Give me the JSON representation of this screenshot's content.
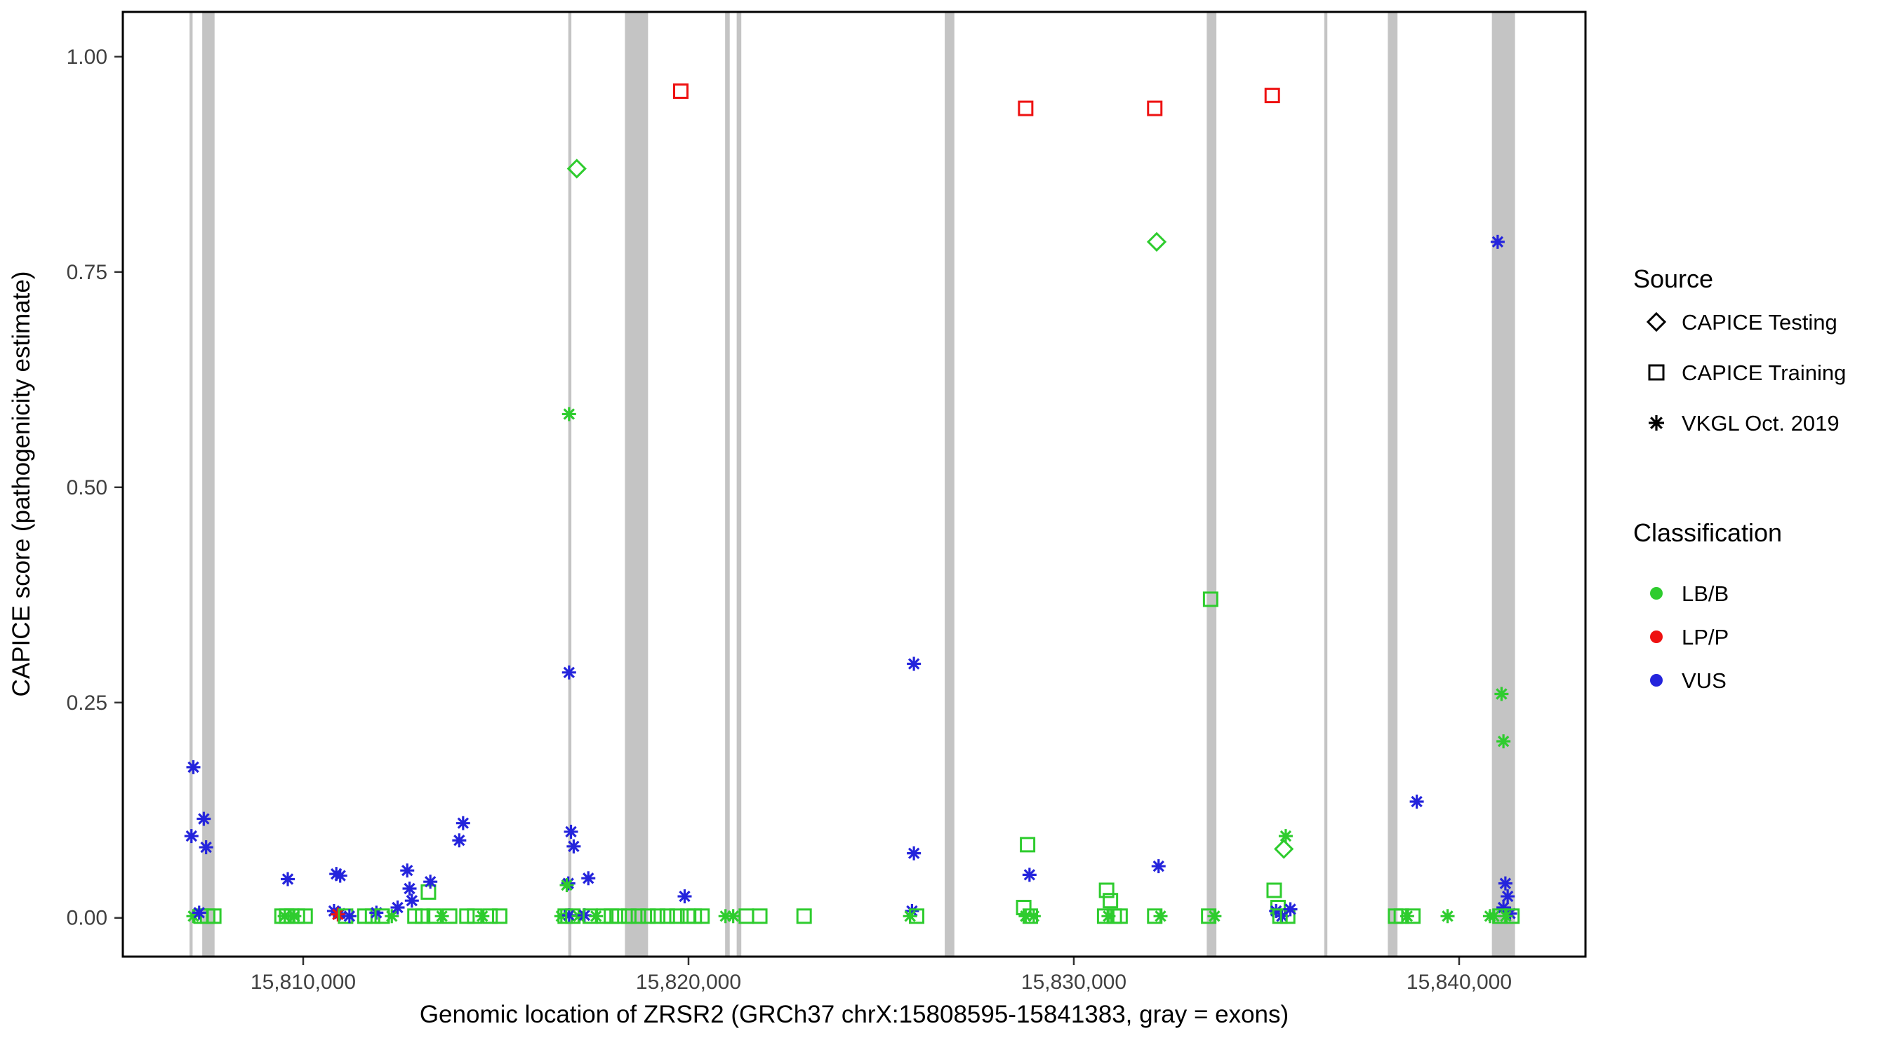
{
  "chart_data": {
    "type": "scatter",
    "title": "",
    "xlabel": "Genomic location of ZRSR2 (GRCh37 chrX:15808595-15841383, gray = exons)",
    "ylabel": "CAPICE score (pathogenicity estimate)",
    "x_domain": [
      15805319,
      15843279
    ],
    "y_domain": [
      -0.045,
      1.052
    ],
    "grid": "off",
    "legend_position": "right",
    "x_ticks": [
      {
        "value": 15810000,
        "label": "15,810,000"
      },
      {
        "value": 15820000,
        "label": "15,820,000"
      },
      {
        "value": 15830000,
        "label": "15,830,000"
      },
      {
        "value": 15840000,
        "label": "15,840,000"
      }
    ],
    "y_ticks": [
      {
        "value": 0.0,
        "label": "0.00"
      },
      {
        "value": 0.25,
        "label": "0.25"
      },
      {
        "value": 0.5,
        "label": "0.50"
      },
      {
        "value": 0.75,
        "label": "0.75"
      },
      {
        "value": 1.0,
        "label": "1.00"
      }
    ],
    "exon_color": "#C4C4C4",
    "exons": [
      [
        15807050,
        15807130
      ],
      [
        15807380,
        15807700
      ],
      [
        15816880,
        15816960
      ],
      [
        15818350,
        15818950
      ],
      [
        15820950,
        15821070
      ],
      [
        15821250,
        15821370
      ],
      [
        15826650,
        15826900
      ],
      [
        15833450,
        15833700
      ],
      [
        15836500,
        15836580
      ],
      [
        15838150,
        15838400
      ],
      [
        15840850,
        15841450
      ]
    ],
    "classification_colors": {
      "LB/B": "#2ECC2E",
      "LP/P": "#EE1111",
      "VUS": "#2424DC"
    },
    "source_shapes": {
      "testing": "diamond",
      "training": "square",
      "vkgl": "asterisk"
    },
    "point_columns": [
      "x",
      "y",
      "classification",
      "source"
    ],
    "points": [
      [
        15807150,
        0.175,
        "VUS",
        "vkgl"
      ],
      [
        15807100,
        0.095,
        "VUS",
        "vkgl"
      ],
      [
        15807420,
        0.115,
        "VUS",
        "vkgl"
      ],
      [
        15807480,
        0.082,
        "VUS",
        "vkgl"
      ],
      [
        15807150,
        0.002,
        "LB/B",
        "vkgl"
      ],
      [
        15807350,
        0.002,
        "LB/B",
        "training"
      ],
      [
        15807520,
        0.002,
        "LB/B",
        "training"
      ],
      [
        15807680,
        0.002,
        "LB/B",
        "training"
      ],
      [
        15807300,
        0.006,
        "VUS",
        "vkgl"
      ],
      [
        15809600,
        0.045,
        "VUS",
        "vkgl"
      ],
      [
        15809450,
        0.002,
        "LB/B",
        "training"
      ],
      [
        15809570,
        0.002,
        "LB/B",
        "training"
      ],
      [
        15809700,
        0.002,
        "LB/B",
        "training"
      ],
      [
        15809850,
        0.002,
        "LB/B",
        "training"
      ],
      [
        15809520,
        0.002,
        "LB/B",
        "vkgl"
      ],
      [
        15809770,
        0.002,
        "LB/B",
        "vkgl"
      ],
      [
        15810050,
        0.002,
        "LB/B",
        "training"
      ],
      [
        15810860,
        0.051,
        "VUS",
        "vkgl"
      ],
      [
        15810960,
        0.049,
        "VUS",
        "vkgl"
      ],
      [
        15810800,
        0.008,
        "VUS",
        "vkgl"
      ],
      [
        15810950,
        0.005,
        "VUS",
        "vkgl"
      ],
      [
        15810900,
        0.004,
        "LP/P",
        "vkgl"
      ],
      [
        15811100,
        0.002,
        "LB/B",
        "training"
      ],
      [
        15811200,
        0.002,
        "VUS",
        "vkgl"
      ],
      [
        15811600,
        0.002,
        "LB/B",
        "training"
      ],
      [
        15811800,
        0.002,
        "LB/B",
        "training"
      ],
      [
        15811900,
        0.006,
        "VUS",
        "vkgl"
      ],
      [
        15812050,
        0.002,
        "LB/B",
        "training"
      ],
      [
        15812300,
        0.002,
        "LB/B",
        "vkgl"
      ],
      [
        15812450,
        0.012,
        "VUS",
        "vkgl"
      ],
      [
        15812700,
        0.055,
        "VUS",
        "vkgl"
      ],
      [
        15812760,
        0.034,
        "VUS",
        "vkgl"
      ],
      [
        15812820,
        0.02,
        "VUS",
        "vkgl"
      ],
      [
        15812900,
        0.002,
        "LB/B",
        "training"
      ],
      [
        15813100,
        0.002,
        "LB/B",
        "training"
      ],
      [
        15813250,
        0.03,
        "LB/B",
        "training"
      ],
      [
        15813300,
        0.042,
        "VUS",
        "vkgl"
      ],
      [
        15813400,
        0.002,
        "LB/B",
        "training"
      ],
      [
        15813600,
        0.002,
        "LB/B",
        "vkgl"
      ],
      [
        15813800,
        0.002,
        "LB/B",
        "training"
      ],
      [
        15814050,
        0.09,
        "VUS",
        "vkgl"
      ],
      [
        15814150,
        0.11,
        "VUS",
        "vkgl"
      ],
      [
        15814250,
        0.002,
        "LB/B",
        "training"
      ],
      [
        15814450,
        0.002,
        "LB/B",
        "training"
      ],
      [
        15814650,
        0.002,
        "LB/B",
        "vkgl"
      ],
      [
        15814850,
        0.002,
        "LB/B",
        "training"
      ],
      [
        15815100,
        0.002,
        "LB/B",
        "training"
      ],
      [
        15817100,
        0.87,
        "LB/B",
        "testing"
      ],
      [
        15816900,
        0.585,
        "LB/B",
        "vkgl"
      ],
      [
        15816900,
        0.285,
        "VUS",
        "vkgl"
      ],
      [
        15816950,
        0.1,
        "VUS",
        "vkgl"
      ],
      [
        15817020,
        0.083,
        "VUS",
        "vkgl"
      ],
      [
        15816880,
        0.04,
        "VUS",
        "vkgl"
      ],
      [
        15817400,
        0.046,
        "VUS",
        "vkgl"
      ],
      [
        15816840,
        0.038,
        "LB/B",
        "vkgl"
      ],
      [
        15816700,
        0.002,
        "LB/B",
        "vkgl"
      ],
      [
        15816800,
        0.002,
        "LB/B",
        "training"
      ],
      [
        15816900,
        0.003,
        "VUS",
        "vkgl"
      ],
      [
        15817000,
        0.002,
        "LB/B",
        "training"
      ],
      [
        15817150,
        0.002,
        "LB/B",
        "vkgl"
      ],
      [
        15817300,
        0.003,
        "VUS",
        "vkgl"
      ],
      [
        15817450,
        0.002,
        "LB/B",
        "training"
      ],
      [
        15817600,
        0.002,
        "LB/B",
        "vkgl"
      ],
      [
        15817800,
        0.002,
        "LB/B",
        "training"
      ],
      [
        15818000,
        0.002,
        "LB/B",
        "training"
      ],
      [
        15818200,
        0.002,
        "LB/B",
        "training"
      ],
      [
        15818450,
        0.002,
        "LB/B",
        "training"
      ],
      [
        15818700,
        0.002,
        "LB/B",
        "training"
      ],
      [
        15818950,
        0.002,
        "LB/B",
        "training"
      ],
      [
        15819200,
        0.002,
        "LB/B",
        "training"
      ],
      [
        15819450,
        0.002,
        "LB/B",
        "training"
      ],
      [
        15819700,
        0.002,
        "LB/B",
        "training"
      ],
      [
        15819800,
        0.96,
        "LP/P",
        "training"
      ],
      [
        15819900,
        0.025,
        "VUS",
        "vkgl"
      ],
      [
        15819980,
        0.002,
        "LB/B",
        "training"
      ],
      [
        15820150,
        0.002,
        "LB/B",
        "training"
      ],
      [
        15820350,
        0.002,
        "LB/B",
        "training"
      ],
      [
        15820960,
        0.002,
        "LB/B",
        "vkgl"
      ],
      [
        15821160,
        0.002,
        "LB/B",
        "vkgl"
      ],
      [
        15821500,
        0.002,
        "LB/B",
        "training"
      ],
      [
        15821850,
        0.002,
        "LB/B",
        "training"
      ],
      [
        15823000,
        0.002,
        "LB/B",
        "training"
      ],
      [
        15825850,
        0.295,
        "VUS",
        "vkgl"
      ],
      [
        15825850,
        0.075,
        "VUS",
        "vkgl"
      ],
      [
        15825800,
        0.008,
        "VUS",
        "vkgl"
      ],
      [
        15825920,
        0.002,
        "LB/B",
        "training"
      ],
      [
        15825750,
        0.002,
        "LB/B",
        "vkgl"
      ],
      [
        15828750,
        0.94,
        "LP/P",
        "training"
      ],
      [
        15828800,
        0.085,
        "LB/B",
        "training"
      ],
      [
        15828850,
        0.05,
        "VUS",
        "vkgl"
      ],
      [
        15828700,
        0.012,
        "LB/B",
        "training"
      ],
      [
        15828870,
        0.002,
        "LB/B",
        "training"
      ],
      [
        15828960,
        0.002,
        "LB/B",
        "vkgl"
      ],
      [
        15828750,
        0.002,
        "LB/B",
        "vkgl"
      ],
      [
        15830850,
        0.032,
        "LB/B",
        "training"
      ],
      [
        15830950,
        0.02,
        "LB/B",
        "training"
      ],
      [
        15830800,
        0.002,
        "LB/B",
        "training"
      ],
      [
        15830900,
        0.002,
        "LB/B",
        "vkgl"
      ],
      [
        15831050,
        0.002,
        "LB/B",
        "training"
      ],
      [
        15831200,
        0.002,
        "LB/B",
        "training"
      ],
      [
        15832100,
        0.94,
        "LP/P",
        "training"
      ],
      [
        15832150,
        0.785,
        "LB/B",
        "testing"
      ],
      [
        15832200,
        0.06,
        "VUS",
        "vkgl"
      ],
      [
        15832100,
        0.002,
        "LB/B",
        "training"
      ],
      [
        15832250,
        0.002,
        "LB/B",
        "vkgl"
      ],
      [
        15833550,
        0.37,
        "LB/B",
        "training"
      ],
      [
        15833500,
        0.002,
        "LB/B",
        "training"
      ],
      [
        15833650,
        0.002,
        "LB/B",
        "vkgl"
      ],
      [
        15835150,
        0.955,
        "LP/P",
        "training"
      ],
      [
        15835500,
        0.095,
        "LB/B",
        "vkgl"
      ],
      [
        15835450,
        0.08,
        "LB/B",
        "testing"
      ],
      [
        15835200,
        0.032,
        "LB/B",
        "training"
      ],
      [
        15835300,
        0.012,
        "LB/B",
        "training"
      ],
      [
        15835250,
        0.008,
        "VUS",
        "vkgl"
      ],
      [
        15835400,
        0.002,
        "VUS",
        "vkgl"
      ],
      [
        15835350,
        0.002,
        "LB/B",
        "training"
      ],
      [
        15835550,
        0.002,
        "LB/B",
        "training"
      ],
      [
        15835620,
        0.01,
        "VUS",
        "vkgl"
      ],
      [
        15838900,
        0.135,
        "VUS",
        "vkgl"
      ],
      [
        15838350,
        0.002,
        "LB/B",
        "training"
      ],
      [
        15838500,
        0.002,
        "LB/B",
        "training"
      ],
      [
        15838650,
        0.002,
        "LB/B",
        "vkgl"
      ],
      [
        15838800,
        0.002,
        "LB/B",
        "training"
      ],
      [
        15839700,
        0.002,
        "LB/B",
        "vkgl"
      ],
      [
        15841000,
        0.785,
        "VUS",
        "vkgl"
      ],
      [
        15841100,
        0.26,
        "LB/B",
        "vkgl"
      ],
      [
        15841150,
        0.205,
        "LB/B",
        "vkgl"
      ],
      [
        15841200,
        0.04,
        "VUS",
        "vkgl"
      ],
      [
        15841260,
        0.025,
        "VUS",
        "vkgl"
      ],
      [
        15841150,
        0.012,
        "VUS",
        "vkgl"
      ],
      [
        15841320,
        0.005,
        "VUS",
        "vkgl"
      ],
      [
        15840900,
        0.002,
        "LB/B",
        "vkgl"
      ],
      [
        15841060,
        0.002,
        "LB/B",
        "training"
      ],
      [
        15841210,
        0.002,
        "LB/B",
        "vkgl"
      ],
      [
        15841370,
        0.002,
        "LB/B",
        "training"
      ],
      [
        15840800,
        0.002,
        "LB/B",
        "vkgl"
      ]
    ]
  },
  "legend": {
    "source": {
      "title": "Source",
      "items": [
        {
          "label": "CAPICE Testing",
          "shape": "diamond"
        },
        {
          "label": "CAPICE Training",
          "shape": "square"
        },
        {
          "label": "VKGL Oct. 2019",
          "shape": "asterisk"
        }
      ]
    },
    "classification": {
      "title": "Classification",
      "items": [
        {
          "label": "LB/B",
          "color": "#2ECC2E"
        },
        {
          "label": "LP/P",
          "color": "#EE1111"
        },
        {
          "label": "VUS",
          "color": "#2424DC"
        }
      ]
    }
  }
}
